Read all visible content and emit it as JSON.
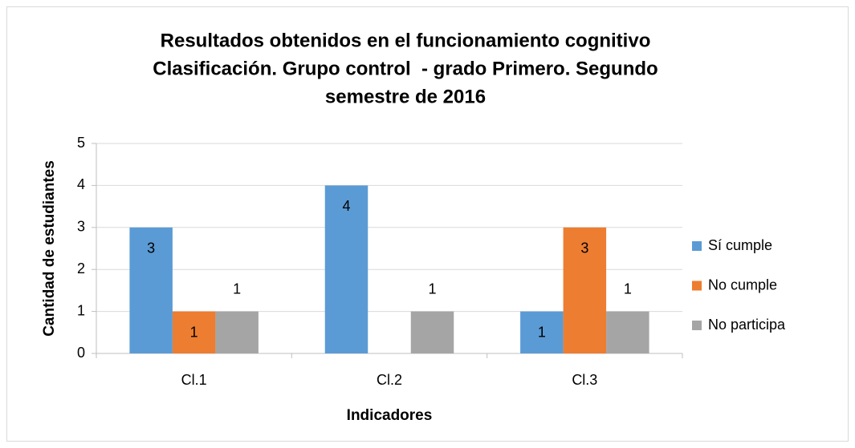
{
  "chart_data": {
    "type": "bar",
    "title": [
      "Resultados obtenidos en el funcionamiento cognitivo",
      "Clasificación. Grupo control  - grado Primero. Segundo",
      "semestre de 2016"
    ],
    "xlabel": "Indicadores",
    "ylabel": "Cantidad de estudiantes",
    "categories": [
      "Cl.1",
      "Cl.2",
      "Cl.3"
    ],
    "series": [
      {
        "name": "Sí cumple",
        "color": "#5b9bd5",
        "values": [
          3,
          4,
          1
        ],
        "label_position": "inside"
      },
      {
        "name": "No cumple",
        "color": "#ed7d31",
        "values": [
          1,
          null,
          3
        ],
        "label_position": "inside"
      },
      {
        "name": "No participa",
        "color": "#a5a5a5",
        "values": [
          1,
          1,
          1
        ],
        "label_position": "outside"
      }
    ],
    "ylim": [
      0,
      5
    ],
    "yticks": [
      0,
      1,
      2,
      3,
      4,
      5
    ],
    "grid": true,
    "legend": "right"
  }
}
